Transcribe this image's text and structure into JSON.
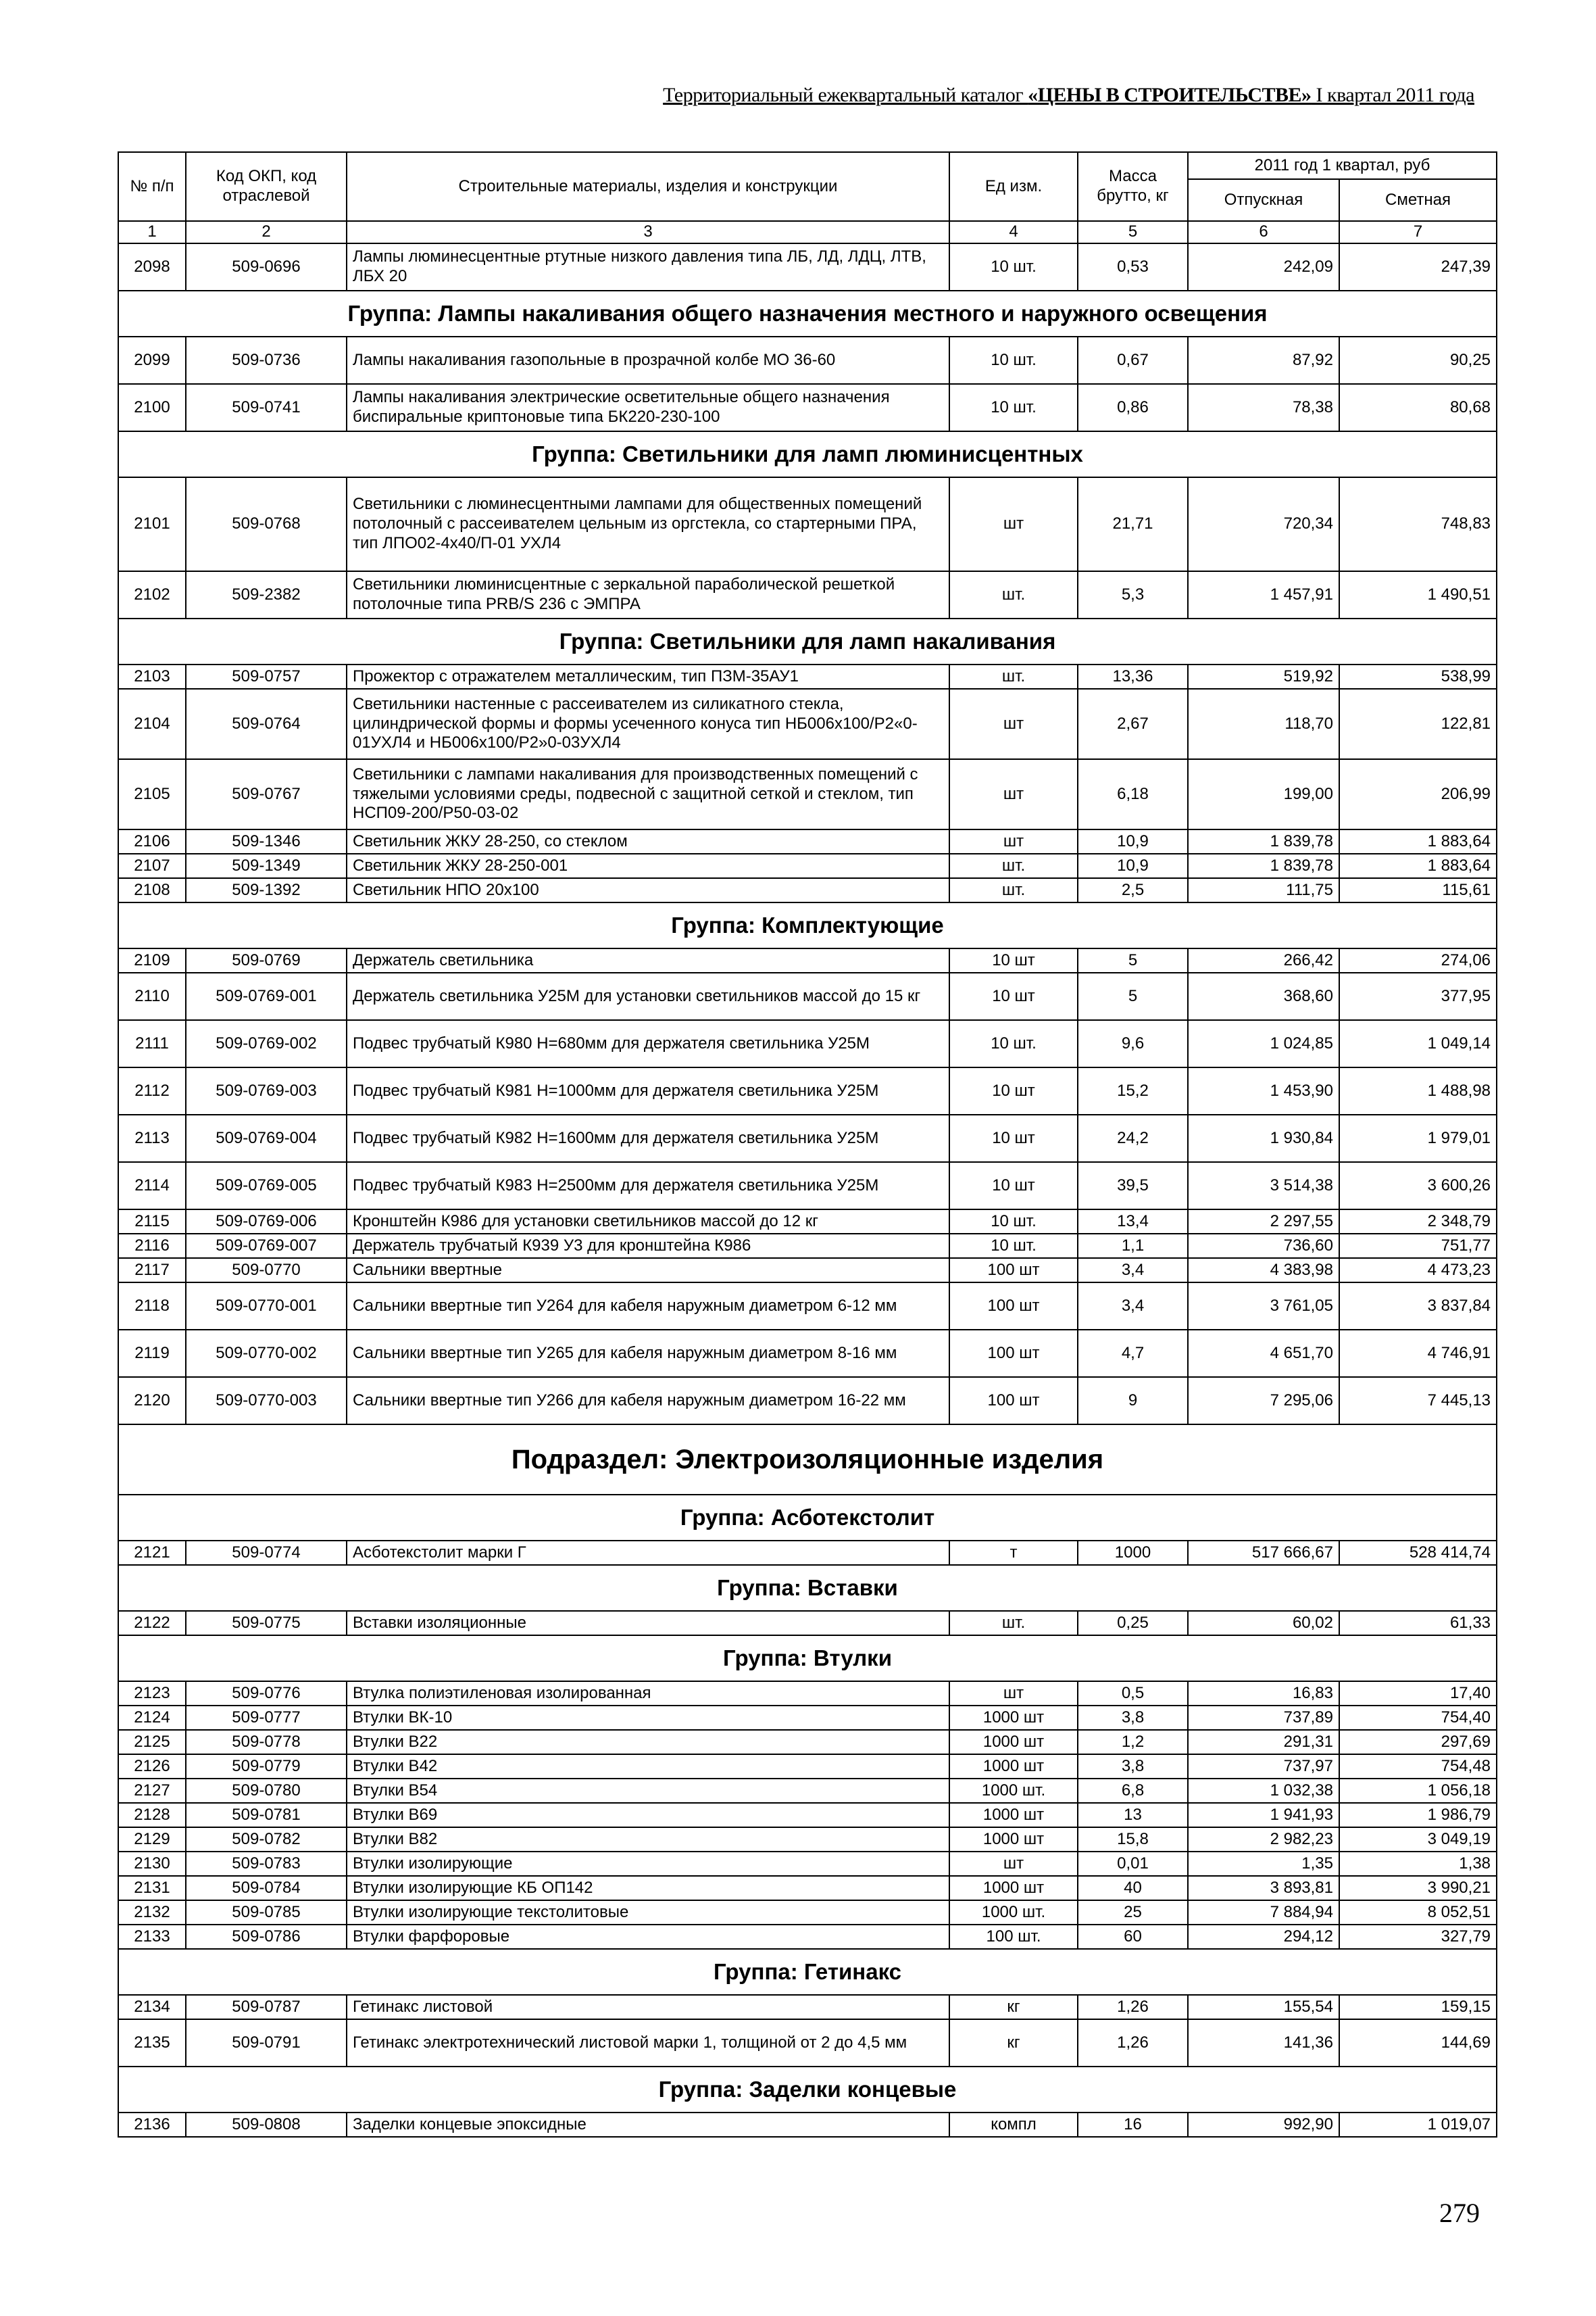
{
  "header": {
    "title_prefix": "Территориальный ежеквартальный каталог ",
    "title_bold": "«ЦЕНЫ В СТРОИТЕЛЬСТВЕ»",
    "title_suffix": " I квартал 2011 года"
  },
  "table": {
    "columns": {
      "num": "№ п/п",
      "code": "Код ОКП, код отраслевой",
      "name": "Строительные материалы, изделия и конструкции",
      "unit": "Ед изм.",
      "mass": "Масса брутто, кг",
      "price_group": "2011 год 1 квартал, руб",
      "price_release": "Отпускная",
      "price_estimate": "Сметная"
    },
    "column_numbers": [
      "1",
      "2",
      "3",
      "4",
      "5",
      "6",
      "7"
    ],
    "rows": [
      {
        "type": "item",
        "lines": 2,
        "num": "2098",
        "code": "509-0696",
        "name": "Лампы люминесцентные ртутные низкого давления типа ЛБ, ЛД, ЛДЦ, ЛТВ, ЛБХ 20",
        "unit": "10 шт.",
        "mass": "0,53",
        "release": "242,09",
        "estimate": "247,39"
      },
      {
        "type": "group",
        "title": "Группа: Лампы накаливания общего назначения местного и наружного освещения"
      },
      {
        "type": "item",
        "lines": 2,
        "num": "2099",
        "code": "509-0736",
        "name": "Лампы накаливания газопольные в прозрачной колбе МО 36-60",
        "unit": "10 шт.",
        "mass": "0,67",
        "release": "87,92",
        "estimate": "90,25"
      },
      {
        "type": "item",
        "lines": 2,
        "num": "2100",
        "code": "509-0741",
        "name": "Лампы накаливания электрические осветительные общего назначения биспиральные криптоновые типа БК220-230-100",
        "unit": "10 шт.",
        "mass": "0,86",
        "release": "78,38",
        "estimate": "80,68"
      },
      {
        "type": "group",
        "title": "Группа: Светильники для ламп люминисцентных"
      },
      {
        "type": "item",
        "lines": 4,
        "num": "2101",
        "code": "509-0768",
        "name": "Светильники с люминесцентными лампами для общественных помещений потолочный с рассеивателем цельным из оргстекла, со стартерными ПРА, тип ЛПО02-4х40/П-01 УХЛ4",
        "unit": "шт",
        "mass": "21,71",
        "release": "720,34",
        "estimate": "748,83"
      },
      {
        "type": "item",
        "lines": 2,
        "num": "2102",
        "code": "509-2382",
        "name": "Светильники люминисцентные с зеркальной параболической решеткой потолочные типа PRB/S 236 с ЭМПРА",
        "unit": "шт.",
        "mass": "5,3",
        "release": "1 457,91",
        "estimate": "1 490,51"
      },
      {
        "type": "group",
        "title": "Группа: Светильники для ламп накаливания"
      },
      {
        "type": "item",
        "lines": 1,
        "num": "2103",
        "code": "509-0757",
        "name": "Прожектор с отражателем металлическим, тип ПЗМ-35АУ1",
        "unit": "шт.",
        "mass": "13,36",
        "release": "519,92",
        "estimate": "538,99"
      },
      {
        "type": "item",
        "lines": 3,
        "num": "2104",
        "code": "509-0764",
        "name": "Светильники настенные с рассеивателем из силикатного стекла, цилиндрической формы и формы усеченного конуса тип НБ006х100/Р2«0-01УХЛ4 и НБ006х100/Р2»0-03УХЛ4",
        "unit": "шт",
        "mass": "2,67",
        "release": "118,70",
        "estimate": "122,81"
      },
      {
        "type": "item",
        "lines": 3,
        "num": "2105",
        "code": "509-0767",
        "name": "Светильники с лампами накаливания для производственных помещений с тяжелыми условиями среды, подвесной с защитной сеткой и стеклом, тип НСП09-200/Р50-03-02",
        "unit": "шт",
        "mass": "6,18",
        "release": "199,00",
        "estimate": "206,99"
      },
      {
        "type": "item",
        "lines": 1,
        "num": "2106",
        "code": "509-1346",
        "name": "Светильник ЖКУ 28-250, со стеклом",
        "unit": "шт",
        "mass": "10,9",
        "release": "1 839,78",
        "estimate": "1 883,64"
      },
      {
        "type": "item",
        "lines": 1,
        "num": "2107",
        "code": "509-1349",
        "name": "Светильник ЖКУ 28-250-001",
        "unit": "шт.",
        "mass": "10,9",
        "release": "1 839,78",
        "estimate": "1 883,64"
      },
      {
        "type": "item",
        "lines": 1,
        "num": "2108",
        "code": "509-1392",
        "name": "Светильник НПО 20х100",
        "unit": "шт.",
        "mass": "2,5",
        "release": "111,75",
        "estimate": "115,61"
      },
      {
        "type": "group",
        "title": "Группа: Комплектующие"
      },
      {
        "type": "item",
        "lines": 1,
        "num": "2109",
        "code": "509-0769",
        "name": "Держатель светильника",
        "unit": "10 шт",
        "mass": "5",
        "release": "266,42",
        "estimate": "274,06"
      },
      {
        "type": "item",
        "lines": 2,
        "num": "2110",
        "code": "509-0769-001",
        "name": "Держатель светильника У25М для установки светильников массой до 15 кг",
        "unit": "10 шт",
        "mass": "5",
        "release": "368,60",
        "estimate": "377,95"
      },
      {
        "type": "item",
        "lines": 2,
        "num": "2111",
        "code": "509-0769-002",
        "name": "Подвес трубчатый К980 Н=680мм для держателя светильника У25М",
        "unit": "10 шт.",
        "mass": "9,6",
        "release": "1 024,85",
        "estimate": "1 049,14"
      },
      {
        "type": "item",
        "lines": 2,
        "num": "2112",
        "code": "509-0769-003",
        "name": "Подвес трубчатый К981 Н=1000мм для держателя светильника У25М",
        "unit": "10 шт",
        "mass": "15,2",
        "release": "1 453,90",
        "estimate": "1 488,98"
      },
      {
        "type": "item",
        "lines": 2,
        "num": "2113",
        "code": "509-0769-004",
        "name": "Подвес трубчатый К982 Н=1600мм для держателя светильника У25М",
        "unit": "10 шт",
        "mass": "24,2",
        "release": "1 930,84",
        "estimate": "1 979,01"
      },
      {
        "type": "item",
        "lines": 2,
        "num": "2114",
        "code": "509-0769-005",
        "name": "Подвес трубчатый К983 Н=2500мм для держателя светильника У25М",
        "unit": "10 шт",
        "mass": "39,5",
        "release": "3 514,38",
        "estimate": "3 600,26"
      },
      {
        "type": "item",
        "lines": 1,
        "num": "2115",
        "code": "509-0769-006",
        "name": "Кронштейн К986 для установки светильников массой до 12 кг",
        "unit": "10 шт.",
        "mass": "13,4",
        "release": "2 297,55",
        "estimate": "2 348,79"
      },
      {
        "type": "item",
        "lines": 1,
        "num": "2116",
        "code": "509-0769-007",
        "name": "Держатель трубчатый К939 У3 для кронштейна К986",
        "unit": "10 шт.",
        "mass": "1,1",
        "release": "736,60",
        "estimate": "751,77"
      },
      {
        "type": "item",
        "lines": 1,
        "num": "2117",
        "code": "509-0770",
        "name": "Сальники ввертные",
        "unit": "100 шт",
        "mass": "3,4",
        "release": "4 383,98",
        "estimate": "4 473,23"
      },
      {
        "type": "item",
        "lines": 2,
        "num": "2118",
        "code": "509-0770-001",
        "name": "Сальники ввертные  тип У264 для кабеля наружным диаметром 6-12 мм",
        "unit": "100 шт",
        "mass": "3,4",
        "release": "3 761,05",
        "estimate": "3 837,84"
      },
      {
        "type": "item",
        "lines": 2,
        "num": "2119",
        "code": "509-0770-002",
        "name": "Сальники ввертные  тип У265 для кабеля наружным диаметром 8-16 мм",
        "unit": "100 шт",
        "mass": "4,7",
        "release": "4 651,70",
        "estimate": "4 746,91"
      },
      {
        "type": "item",
        "lines": 2,
        "num": "2120",
        "code": "509-0770-003",
        "name": "Сальники ввертные  тип У266 для кабеля наружным диаметром 16-22 мм",
        "unit": "100 шт",
        "mass": "9",
        "release": "7 295,06",
        "estimate": "7 445,13"
      },
      {
        "type": "subdivision",
        "title": "Подраздел: Электроизоляционные изделия"
      },
      {
        "type": "group",
        "title": "Группа: Асботекстолит"
      },
      {
        "type": "item",
        "lines": 1,
        "num": "2121",
        "code": "509-0774",
        "name": "Асботекстолит марки Г",
        "unit": "т",
        "mass": "1000",
        "release": "517 666,67",
        "estimate": "528 414,74"
      },
      {
        "type": "group",
        "title": "Группа: Вставки"
      },
      {
        "type": "item",
        "lines": 1,
        "num": "2122",
        "code": "509-0775",
        "name": "Вставки изоляционные",
        "unit": "шт.",
        "mass": "0,25",
        "release": "60,02",
        "estimate": "61,33"
      },
      {
        "type": "group",
        "title": "Группа: Втулки"
      },
      {
        "type": "item",
        "lines": 1,
        "num": "2123",
        "code": "509-0776",
        "name": "Втулка полиэтиленовая изолированная",
        "unit": "шт",
        "mass": "0,5",
        "release": "16,83",
        "estimate": "17,40"
      },
      {
        "type": "item",
        "lines": 1,
        "num": "2124",
        "code": "509-0777",
        "name": "Втулки ВК-10",
        "unit": "1000 шт",
        "mass": "3,8",
        "release": "737,89",
        "estimate": "754,40"
      },
      {
        "type": "item",
        "lines": 1,
        "num": "2125",
        "code": "509-0778",
        "name": "Втулки В22",
        "unit": "1000 шт",
        "mass": "1,2",
        "release": "291,31",
        "estimate": "297,69"
      },
      {
        "type": "item",
        "lines": 1,
        "num": "2126",
        "code": "509-0779",
        "name": "Втулки В42",
        "unit": "1000 шт",
        "mass": "3,8",
        "release": "737,97",
        "estimate": "754,48"
      },
      {
        "type": "item",
        "lines": 1,
        "num": "2127",
        "code": "509-0780",
        "name": "Втулки В54",
        "unit": "1000 шт.",
        "mass": "6,8",
        "release": "1 032,38",
        "estimate": "1 056,18"
      },
      {
        "type": "item",
        "lines": 1,
        "num": "2128",
        "code": "509-0781",
        "name": "Втулки В69",
        "unit": "1000 шт",
        "mass": "13",
        "release": "1 941,93",
        "estimate": "1 986,79"
      },
      {
        "type": "item",
        "lines": 1,
        "num": "2129",
        "code": "509-0782",
        "name": "Втулки В82",
        "unit": "1000 шт",
        "mass": "15,8",
        "release": "2 982,23",
        "estimate": "3 049,19"
      },
      {
        "type": "item",
        "lines": 1,
        "num": "2130",
        "code": "509-0783",
        "name": "Втулки изолирующие",
        "unit": "шт",
        "mass": "0,01",
        "release": "1,35",
        "estimate": "1,38"
      },
      {
        "type": "item",
        "lines": 1,
        "num": "2131",
        "code": "509-0784",
        "name": "Втулки изолирующие КБ ОП142",
        "unit": "1000 шт",
        "mass": "40",
        "release": "3 893,81",
        "estimate": "3 990,21"
      },
      {
        "type": "item",
        "lines": 1,
        "num": "2132",
        "code": "509-0785",
        "name": "Втулки изолирующие текстолитовые",
        "unit": "1000 шт.",
        "mass": "25",
        "release": "7 884,94",
        "estimate": "8 052,51"
      },
      {
        "type": "item",
        "lines": 1,
        "num": "2133",
        "code": "509-0786",
        "name": "Втулки фарфоровые",
        "unit": "100 шт.",
        "mass": "60",
        "release": "294,12",
        "estimate": "327,79"
      },
      {
        "type": "group",
        "title": "Группа: Гетинакс"
      },
      {
        "type": "item",
        "lines": 1,
        "num": "2134",
        "code": "509-0787",
        "name": "Гетинакс листовой",
        "unit": "кг",
        "mass": "1,26",
        "release": "155,54",
        "estimate": "159,15"
      },
      {
        "type": "item",
        "lines": 2,
        "num": "2135",
        "code": "509-0791",
        "name": "Гетинакс электротехнический листовой марки 1, толщиной от 2 до 4,5 мм",
        "unit": "кг",
        "mass": "1,26",
        "release": "141,36",
        "estimate": "144,69"
      },
      {
        "type": "group",
        "title": "Группа: Заделки концевые"
      },
      {
        "type": "item",
        "lines": 1,
        "num": "2136",
        "code": "509-0808",
        "name": "Заделки концевые эпоксидные",
        "unit": "компл",
        "mass": "16",
        "release": "992,90",
        "estimate": "1 019,07"
      }
    ]
  },
  "footer": {
    "page_number": "279"
  }
}
